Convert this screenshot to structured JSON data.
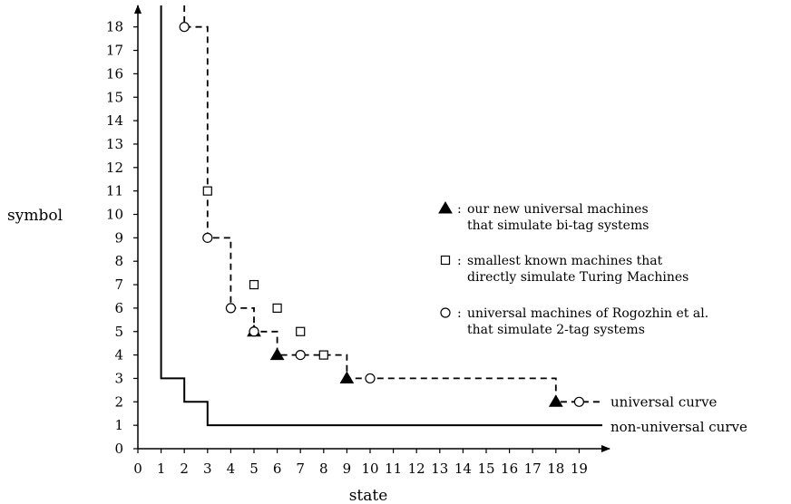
{
  "chart_data": {
    "type": "scatter",
    "xlabel": "state",
    "ylabel": "symbol",
    "xlim": [
      0,
      20
    ],
    "ylim": [
      0,
      19
    ],
    "xticks": [
      0,
      1,
      2,
      3,
      4,
      5,
      6,
      7,
      8,
      9,
      10,
      11,
      12,
      13,
      14,
      15,
      16,
      17,
      18,
      19
    ],
    "yticks": [
      0,
      1,
      2,
      3,
      4,
      5,
      6,
      7,
      8,
      9,
      10,
      11,
      12,
      13,
      14,
      15,
      16,
      17,
      18
    ],
    "grid": false,
    "legend_position": "right",
    "series": [
      {
        "marker": "filled-triangle",
        "legend": [
          "our new universal machines",
          "that simulate bi-tag systems"
        ],
        "points": [
          [
            5,
            5
          ],
          [
            6,
            4
          ],
          [
            9,
            3
          ],
          [
            18,
            2
          ]
        ]
      },
      {
        "marker": "open-square",
        "legend": [
          "smallest known machines that",
          "directly simulate Turing Machines"
        ],
        "points": [
          [
            3,
            11
          ],
          [
            5,
            7
          ],
          [
            6,
            6
          ],
          [
            7,
            5
          ],
          [
            8,
            4
          ]
        ]
      },
      {
        "marker": "open-circle",
        "legend": [
          "universal machines of Rogozhin et al.",
          "that simulate 2-tag systems"
        ],
        "points": [
          [
            2,
            18
          ],
          [
            3,
            9
          ],
          [
            4,
            6
          ],
          [
            5,
            5
          ],
          [
            7,
            4
          ],
          [
            10,
            3
          ],
          [
            19,
            2
          ]
        ]
      }
    ],
    "curves": [
      {
        "label": "universal curve",
        "style": "dashed",
        "points": [
          [
            2,
            19
          ],
          [
            2,
            18
          ],
          [
            3,
            18
          ],
          [
            3,
            9
          ],
          [
            4,
            9
          ],
          [
            4,
            6
          ],
          [
            5,
            6
          ],
          [
            5,
            5
          ],
          [
            6,
            5
          ],
          [
            6,
            4
          ],
          [
            9,
            4
          ],
          [
            9,
            3
          ],
          [
            18,
            3
          ],
          [
            18,
            2
          ],
          [
            20,
            2
          ]
        ]
      },
      {
        "label": "non-universal curve",
        "style": "solid",
        "points": [
          [
            1,
            19
          ],
          [
            1,
            3
          ],
          [
            2,
            3
          ],
          [
            2,
            2
          ],
          [
            3,
            2
          ],
          [
            3,
            1
          ],
          [
            20,
            1
          ]
        ]
      }
    ]
  }
}
